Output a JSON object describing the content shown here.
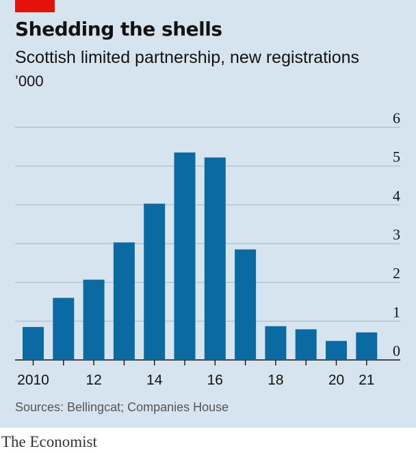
{
  "header": {
    "title": "Shedding the shells",
    "subtitle": "Scottish limited partnership, new registrations",
    "unit": "’000"
  },
  "footer": {
    "source": "Sources: Bellingcat; Companies House",
    "brand": "The Economist"
  },
  "colors": {
    "bar": "#0b6aa2",
    "gridline": "#a9bccb",
    "baseline": "#121212",
    "accent": "#e3120b",
    "background": "#d6e4ef"
  },
  "chart_data": {
    "type": "bar",
    "categories": [
      "2010",
      "2011",
      "2012",
      "2013",
      "2014",
      "2015",
      "2016",
      "2017",
      "2018",
      "2019",
      "2020",
      "2021"
    ],
    "x_tick_labels": [
      "2010",
      "",
      "12",
      "",
      "14",
      "",
      "16",
      "",
      "18",
      "",
      "20",
      "21"
    ],
    "values": [
      0.85,
      1.6,
      2.07,
      3.03,
      4.03,
      5.35,
      5.22,
      2.85,
      0.87,
      0.79,
      0.49,
      0.71
    ],
    "yticks": [
      0,
      1,
      2,
      3,
      4,
      5,
      6
    ],
    "ylim": [
      0,
      6
    ],
    "title": "Shedding the shells",
    "xlabel": "",
    "ylabel": "’000",
    "grid": true,
    "y_axis_position": "right",
    "legend": "none"
  }
}
